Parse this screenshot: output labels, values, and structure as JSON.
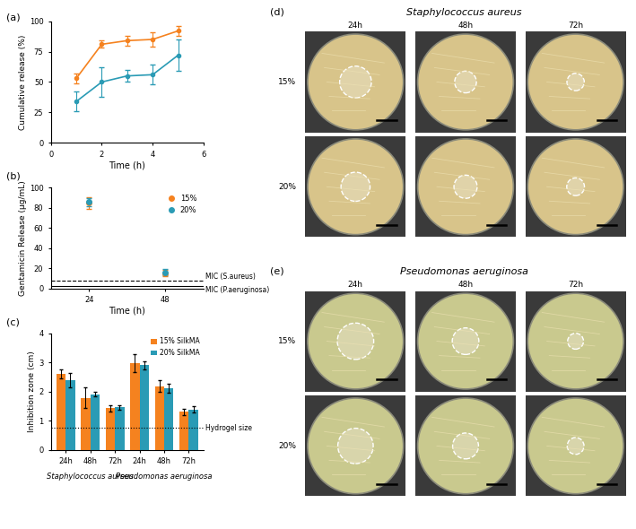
{
  "chart_data": [
    {
      "panel": "(a)",
      "type": "line",
      "xlabel": "Time (h)",
      "ylabel": "Cumulative release (%)",
      "x": [
        1,
        2,
        3,
        4,
        5
      ],
      "series": [
        {
          "color": "#f5821f",
          "values": [
            53,
            81,
            84,
            85,
            92
          ],
          "errors": [
            4,
            3,
            4,
            6,
            4
          ]
        },
        {
          "color": "#2a9bb5",
          "values": [
            34,
            50,
            55,
            56,
            72
          ],
          "errors": [
            8,
            12,
            5,
            8,
            13
          ]
        }
      ],
      "xlim": [
        0,
        6
      ],
      "xticks": [
        0,
        2,
        4,
        6
      ],
      "ylim": [
        0,
        100
      ],
      "yticks": [
        0,
        25,
        50,
        75,
        100
      ],
      "marker": "circle"
    },
    {
      "panel": "(b)",
      "type": "scatter",
      "xlabel": "Time (h)",
      "ylabel": "Gentamicin Release (μg/mL)",
      "x": [
        24,
        48
      ],
      "series": [
        {
          "name": "15%",
          "color": "#f5821f",
          "values": [
            85,
            15
          ],
          "errors": [
            6,
            3
          ]
        },
        {
          "name": "20%",
          "color": "#2a9bb5",
          "values": [
            86,
            16
          ],
          "errors": [
            4,
            3
          ]
        }
      ],
      "xlim": [
        12,
        60
      ],
      "xticks": [
        24,
        48
      ],
      "ylim": [
        0,
        100
      ],
      "yticks": [
        0,
        20,
        40,
        60,
        80,
        100
      ],
      "legend": "upper right",
      "reference_lines": [
        {
          "label": "MIC (S.aureus)",
          "value": 8,
          "line_style": "dashed"
        },
        {
          "label": "MIC (P.aeruginosa)",
          "value": 2,
          "line_style": "solid"
        }
      ]
    },
    {
      "panel": "(c)",
      "type": "bar",
      "ylabel": "Inhibition zone (cm)",
      "categories": [
        "24h",
        "48h",
        "72h",
        "24h",
        "48h",
        "72h"
      ],
      "groups": [
        {
          "label": "Staphylococcus aureus",
          "categories": [
            "24h",
            "48h",
            "72h"
          ]
        },
        {
          "label": "Pseudomonas aeruginosa",
          "categories": [
            "24h",
            "48h",
            "72h"
          ]
        }
      ],
      "series": [
        {
          "name": "15% SilkMA",
          "color": "#f5821f",
          "values": [
            2.6,
            1.78,
            1.42,
            2.98,
            2.18,
            1.3
          ],
          "errors": [
            0.15,
            0.35,
            0.1,
            0.3,
            0.2,
            0.1
          ]
        },
        {
          "name": "20% SilkMA",
          "color": "#2a9bb5",
          "values": [
            2.38,
            1.9,
            1.45,
            2.9,
            2.12,
            1.38
          ],
          "errors": [
            0.25,
            0.08,
            0.08,
            0.15,
            0.15,
            0.1
          ]
        }
      ],
      "ylim": [
        0,
        4
      ],
      "yticks": [
        0,
        1,
        2,
        3,
        4
      ],
      "legend": "upper right",
      "reference_lines": [
        {
          "label": "Hydrogel size",
          "value": 0.75,
          "line_style": "dotted"
        }
      ]
    }
  ],
  "photo_panels": [
    {
      "panel": "(d)",
      "title": "Staphylococcus aureus",
      "columns": [
        "24h",
        "48h",
        "72h"
      ],
      "rows": [
        "15%",
        "20%"
      ]
    },
    {
      "panel": "(e)",
      "title": "Pseudomonas aeruginosa",
      "columns": [
        "24h",
        "48h",
        "72h"
      ],
      "rows": [
        "15%",
        "20%"
      ]
    }
  ]
}
